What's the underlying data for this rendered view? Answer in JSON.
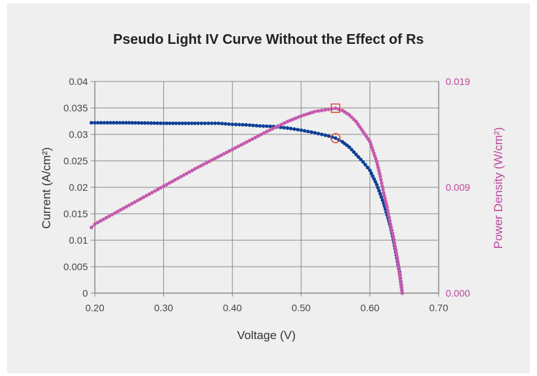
{
  "chart_data": {
    "type": "line",
    "title": "Pseudo Light IV Curve Without the Effect of Rs",
    "xlabel": "Voltage (V)",
    "ylabel": "Current (A/cm²)",
    "ylabel_right": "Power Density (W/cm²)",
    "xlim": [
      0.2,
      0.7
    ],
    "ylim": [
      0,
      0.04
    ],
    "ylim_right": [
      0,
      0.019
    ],
    "x_ticks": [
      "0.20",
      "0.30",
      "0.40",
      "0.50",
      "0.60",
      "0.70"
    ],
    "x_tick_values": [
      0.2,
      0.3,
      0.4,
      0.5,
      0.6,
      0.7
    ],
    "y_ticks": [
      "0",
      "0.005",
      "0.01",
      "0.015",
      "0.02",
      "0.025",
      "0.03",
      "0.035",
      "0.04"
    ],
    "y_tick_values": [
      0,
      0.005,
      0.01,
      0.015,
      0.02,
      0.025,
      0.03,
      0.035,
      0.04
    ],
    "y_right_ticks": [
      "0.000",
      "0.009",
      "0.019"
    ],
    "y_right_tick_values": [
      0,
      0.0095,
      0.019
    ],
    "grid": true,
    "legend": "none",
    "colors": {
      "current": "#0d3f96",
      "power": "#c55aad",
      "marker": "#e0463a",
      "grid": "#8a8a8a",
      "background": "#eeefee"
    },
    "series": [
      {
        "name": "Current",
        "axis": "left",
        "x": [
          0.195,
          0.2,
          0.25,
          0.3,
          0.35,
          0.38,
          0.4,
          0.42,
          0.44,
          0.46,
          0.48,
          0.5,
          0.52,
          0.54,
          0.55,
          0.56,
          0.57,
          0.58,
          0.59,
          0.6,
          0.61,
          0.62,
          0.625,
          0.63,
          0.635,
          0.64,
          0.643,
          0.645,
          0.647
        ],
        "values": [
          0.0322,
          0.0322,
          0.0322,
          0.0321,
          0.0321,
          0.0321,
          0.0319,
          0.0318,
          0.0316,
          0.0315,
          0.0312,
          0.0308,
          0.0303,
          0.0297,
          0.0293,
          0.0286,
          0.0276,
          0.0262,
          0.0248,
          0.0232,
          0.0205,
          0.017,
          0.0148,
          0.0125,
          0.0095,
          0.006,
          0.004,
          0.0022,
          0.0
        ]
      },
      {
        "name": "Power Density",
        "axis": "right",
        "x": [
          0.195,
          0.2,
          0.25,
          0.3,
          0.35,
          0.4,
          0.45,
          0.48,
          0.5,
          0.52,
          0.54,
          0.55,
          0.56,
          0.57,
          0.58,
          0.59,
          0.6,
          0.61,
          0.615,
          0.62,
          0.625,
          0.63,
          0.635,
          0.64,
          0.643,
          0.645,
          0.647
        ],
        "values": [
          0.0059,
          0.0062,
          0.0079,
          0.0096,
          0.0113,
          0.0129,
          0.0145,
          0.0154,
          0.0159,
          0.0163,
          0.0165,
          0.0166,
          0.0164,
          0.016,
          0.0154,
          0.0145,
          0.0136,
          0.0118,
          0.0105,
          0.009,
          0.0077,
          0.0062,
          0.0048,
          0.003,
          0.0018,
          0.0008,
          0.0
        ]
      }
    ],
    "annotations": [
      {
        "type": "square-marker",
        "series": "Power Density",
        "label": "max power point",
        "x": 0.55,
        "value": 0.0166,
        "axis": "right"
      },
      {
        "type": "circle-marker",
        "series": "Current",
        "label": "current at max power",
        "x": 0.55,
        "value": 0.0293,
        "axis": "left"
      }
    ]
  }
}
